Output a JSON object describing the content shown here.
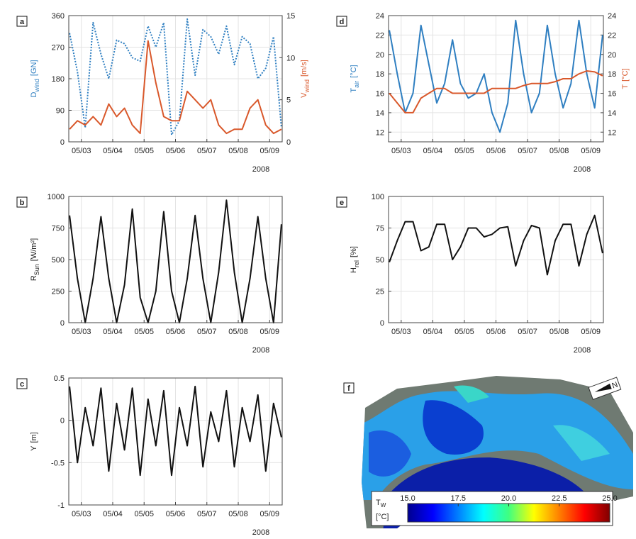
{
  "chart_data": [
    {
      "type": "line",
      "panel": "a",
      "xlim": [
        2.6,
        9.4
      ],
      "xticks": [
        {
          "value": 3,
          "label": "05/03"
        },
        {
          "value": 4,
          "label": "05/04"
        },
        {
          "value": 5,
          "label": "05/05"
        },
        {
          "value": 6,
          "label": "05/06"
        },
        {
          "value": 7,
          "label": "05/07"
        },
        {
          "value": 8,
          "label": "05/08"
        },
        {
          "value": 9,
          "label": "05/09"
        }
      ],
      "xlabel": "2008",
      "ylabel": {
        "main": "D",
        "sub": "wind",
        "unit": "[GN]"
      },
      "ylim": [
        0,
        360
      ],
      "yticks": [
        0,
        90,
        180,
        270,
        360
      ],
      "y2label": {
        "main": "V",
        "sub": "wind",
        "unit": "[m/s]"
      },
      "y2lim": [
        0,
        15
      ],
      "y2ticks": [
        0,
        5,
        10,
        15
      ],
      "grid": true,
      "x": [
        2.625,
        2.875,
        3.125,
        3.375,
        3.625,
        3.875,
        4.125,
        4.375,
        4.625,
        4.875,
        5.125,
        5.375,
        5.625,
        5.875,
        6.125,
        6.375,
        6.625,
        6.875,
        7.125,
        7.375,
        7.625,
        7.875,
        8.125,
        8.375,
        8.625,
        8.875,
        9.125,
        9.375
      ],
      "series": [
        {
          "color": "#2f7fc1",
          "dash": true,
          "values": [
            310,
            200,
            40,
            340,
            250,
            180,
            290,
            280,
            240,
            230,
            330,
            270,
            340,
            20,
            60,
            350,
            190,
            320,
            300,
            250,
            330,
            220,
            300,
            280,
            180,
            210,
            300,
            40
          ]
        },
        {
          "color": "#d9582b",
          "axis": "y2",
          "values": [
            1.5,
            2.5,
            2,
            3,
            2,
            4.5,
            3,
            4,
            2,
            1,
            12,
            7,
            3,
            2.5,
            2.5,
            6,
            5,
            4,
            5,
            2,
            1,
            1.5,
            1.5,
            4,
            5,
            2,
            1,
            1.5
          ]
        }
      ]
    },
    {
      "type": "line",
      "panel": "d",
      "xlim": [
        2.6,
        9.4
      ],
      "xticks": [
        {
          "value": 3,
          "label": "05/03"
        },
        {
          "value": 4,
          "label": "05/04"
        },
        {
          "value": 5,
          "label": "05/05"
        },
        {
          "value": 6,
          "label": "05/06"
        },
        {
          "value": 7,
          "label": "05/07"
        },
        {
          "value": 8,
          "label": "05/08"
        },
        {
          "value": 9,
          "label": "05/09"
        }
      ],
      "xlabel": "2008",
      "ylabel": {
        "main": "T",
        "sub": "air",
        "unit": "[°C]"
      },
      "ylim": [
        11,
        24
      ],
      "yticks": [
        12,
        14,
        16,
        18,
        20,
        22,
        24
      ],
      "y2label": {
        "main": "T",
        "unit": "[°C]"
      },
      "y2lim": [
        11,
        24
      ],
      "y2ticks": [
        12,
        14,
        16,
        18,
        20,
        22,
        24
      ],
      "grid": true,
      "x": [
        2.625,
        2.875,
        3.125,
        3.375,
        3.625,
        3.875,
        4.125,
        4.375,
        4.625,
        4.875,
        5.125,
        5.375,
        5.625,
        5.875,
        6.125,
        6.375,
        6.625,
        6.875,
        7.125,
        7.375,
        7.625,
        7.875,
        8.125,
        8.375,
        8.625,
        8.875,
        9.125,
        9.375
      ],
      "series": [
        {
          "color": "#2f7fc1",
          "values": [
            22.5,
            18,
            14,
            16,
            23,
            19,
            15,
            17,
            21.5,
            17,
            15.5,
            16,
            18,
            14,
            12,
            15,
            23.5,
            18,
            14,
            16,
            23,
            18,
            14.5,
            17,
            23.5,
            18,
            14.5,
            22
          ]
        },
        {
          "color": "#d9582b",
          "axis": "y2",
          "values": [
            16,
            15,
            14,
            14,
            15.5,
            16,
            16.5,
            16.5,
            16,
            16,
            16,
            16,
            16,
            16.5,
            16.5,
            16.5,
            16.5,
            16.8,
            17,
            17,
            17,
            17.2,
            17.5,
            17.5,
            18,
            18.3,
            18.2,
            17.8
          ]
        }
      ]
    },
    {
      "type": "line",
      "panel": "b",
      "xlim": [
        2.6,
        9.4
      ],
      "xticks": [
        {
          "value": 3,
          "label": "05/03"
        },
        {
          "value": 4,
          "label": "05/04"
        },
        {
          "value": 5,
          "label": "05/05"
        },
        {
          "value": 6,
          "label": "05/06"
        },
        {
          "value": 7,
          "label": "05/07"
        },
        {
          "value": 8,
          "label": "05/08"
        },
        {
          "value": 9,
          "label": "05/09"
        }
      ],
      "xlabel": "2008",
      "ylabel": {
        "main": "R",
        "sub": "Sun",
        "unit": "[W/m²]"
      },
      "ylim": [
        0,
        1000
      ],
      "yticks": [
        0,
        250,
        500,
        750,
        1000
      ],
      "grid": true,
      "x": [
        2.625,
        2.875,
        3.125,
        3.375,
        3.625,
        3.875,
        4.125,
        4.375,
        4.625,
        4.875,
        5.125,
        5.375,
        5.625,
        5.875,
        6.125,
        6.375,
        6.625,
        6.875,
        7.125,
        7.375,
        7.625,
        7.875,
        8.125,
        8.375,
        8.625,
        8.875,
        9.125,
        9.375
      ],
      "series": [
        {
          "color": "#111111",
          "values": [
            850,
            350,
            0,
            350,
            840,
            350,
            0,
            300,
            900,
            200,
            0,
            250,
            880,
            250,
            0,
            350,
            850,
            350,
            0,
            400,
            970,
            400,
            0,
            350,
            840,
            350,
            0,
            780
          ]
        }
      ]
    },
    {
      "type": "line",
      "panel": "e",
      "xlim": [
        2.6,
        9.4
      ],
      "xticks": [
        {
          "value": 3,
          "label": "05/03"
        },
        {
          "value": 4,
          "label": "05/04"
        },
        {
          "value": 5,
          "label": "05/05"
        },
        {
          "value": 6,
          "label": "05/06"
        },
        {
          "value": 7,
          "label": "05/07"
        },
        {
          "value": 8,
          "label": "05/08"
        },
        {
          "value": 9,
          "label": "05/09"
        }
      ],
      "xlabel": "2008",
      "ylabel": {
        "main": "H",
        "sub": "rel",
        "unit": "[%]"
      },
      "ylim": [
        0,
        100
      ],
      "yticks": [
        0,
        25,
        50,
        75,
        100
      ],
      "grid": true,
      "x": [
        2.625,
        2.875,
        3.125,
        3.375,
        3.625,
        3.875,
        4.125,
        4.375,
        4.625,
        4.875,
        5.125,
        5.375,
        5.625,
        5.875,
        6.125,
        6.375,
        6.625,
        6.875,
        7.125,
        7.375,
        7.625,
        7.875,
        8.125,
        8.375,
        8.625,
        8.875,
        9.125,
        9.375
      ],
      "series": [
        {
          "color": "#111111",
          "values": [
            48,
            65,
            80,
            80,
            57,
            60,
            78,
            78,
            50,
            60,
            75,
            75,
            68,
            70,
            75,
            76,
            45,
            65,
            77,
            75,
            38,
            65,
            78,
            78,
            45,
            70,
            85,
            55
          ]
        }
      ]
    },
    {
      "type": "line",
      "panel": "c",
      "xlim": [
        2.6,
        9.4
      ],
      "xticks": [
        {
          "value": 3,
          "label": "05/03"
        },
        {
          "value": 4,
          "label": "05/04"
        },
        {
          "value": 5,
          "label": "05/05"
        },
        {
          "value": 6,
          "label": "05/06"
        },
        {
          "value": 7,
          "label": "05/07"
        },
        {
          "value": 8,
          "label": "05/08"
        },
        {
          "value": 9,
          "label": "05/09"
        }
      ],
      "xlabel": "2008",
      "ylabel": {
        "main": "Y",
        "unit": "[m]"
      },
      "ylim": [
        -1,
        0.5
      ],
      "yticks": [
        -1,
        -0.5,
        0,
        0.5
      ],
      "grid": true,
      "x": [
        2.625,
        2.875,
        3.125,
        3.375,
        3.625,
        3.875,
        4.125,
        4.375,
        4.625,
        4.875,
        5.125,
        5.375,
        5.625,
        5.875,
        6.125,
        6.375,
        6.625,
        6.875,
        7.125,
        7.375,
        7.625,
        7.875,
        8.125,
        8.375,
        8.625,
        8.875,
        9.125,
        9.375
      ],
      "series": [
        {
          "color": "#111111",
          "values": [
            0.4,
            -0.5,
            0.15,
            -0.3,
            0.38,
            -0.6,
            0.2,
            -0.35,
            0.38,
            -0.65,
            0.25,
            -0.3,
            0.35,
            -0.65,
            0.15,
            -0.3,
            0.4,
            -0.55,
            0.1,
            -0.25,
            0.35,
            -0.55,
            0.15,
            -0.25,
            0.3,
            -0.6,
            0.2,
            -0.2
          ]
        }
      ]
    },
    {
      "type": "map",
      "panel": "f",
      "north_label": "N",
      "colorbar": {
        "label": {
          "main": "T",
          "sub": "W",
          "unit": "[°C]"
        },
        "lim": [
          15,
          25
        ],
        "ticks": [
          {
            "value": 15,
            "label": "15.0"
          },
          17.5,
          {
            "value": 20,
            "label": "20.0"
          },
          22.5,
          {
            "value": 25,
            "label": "25.0"
          }
        ]
      }
    }
  ]
}
